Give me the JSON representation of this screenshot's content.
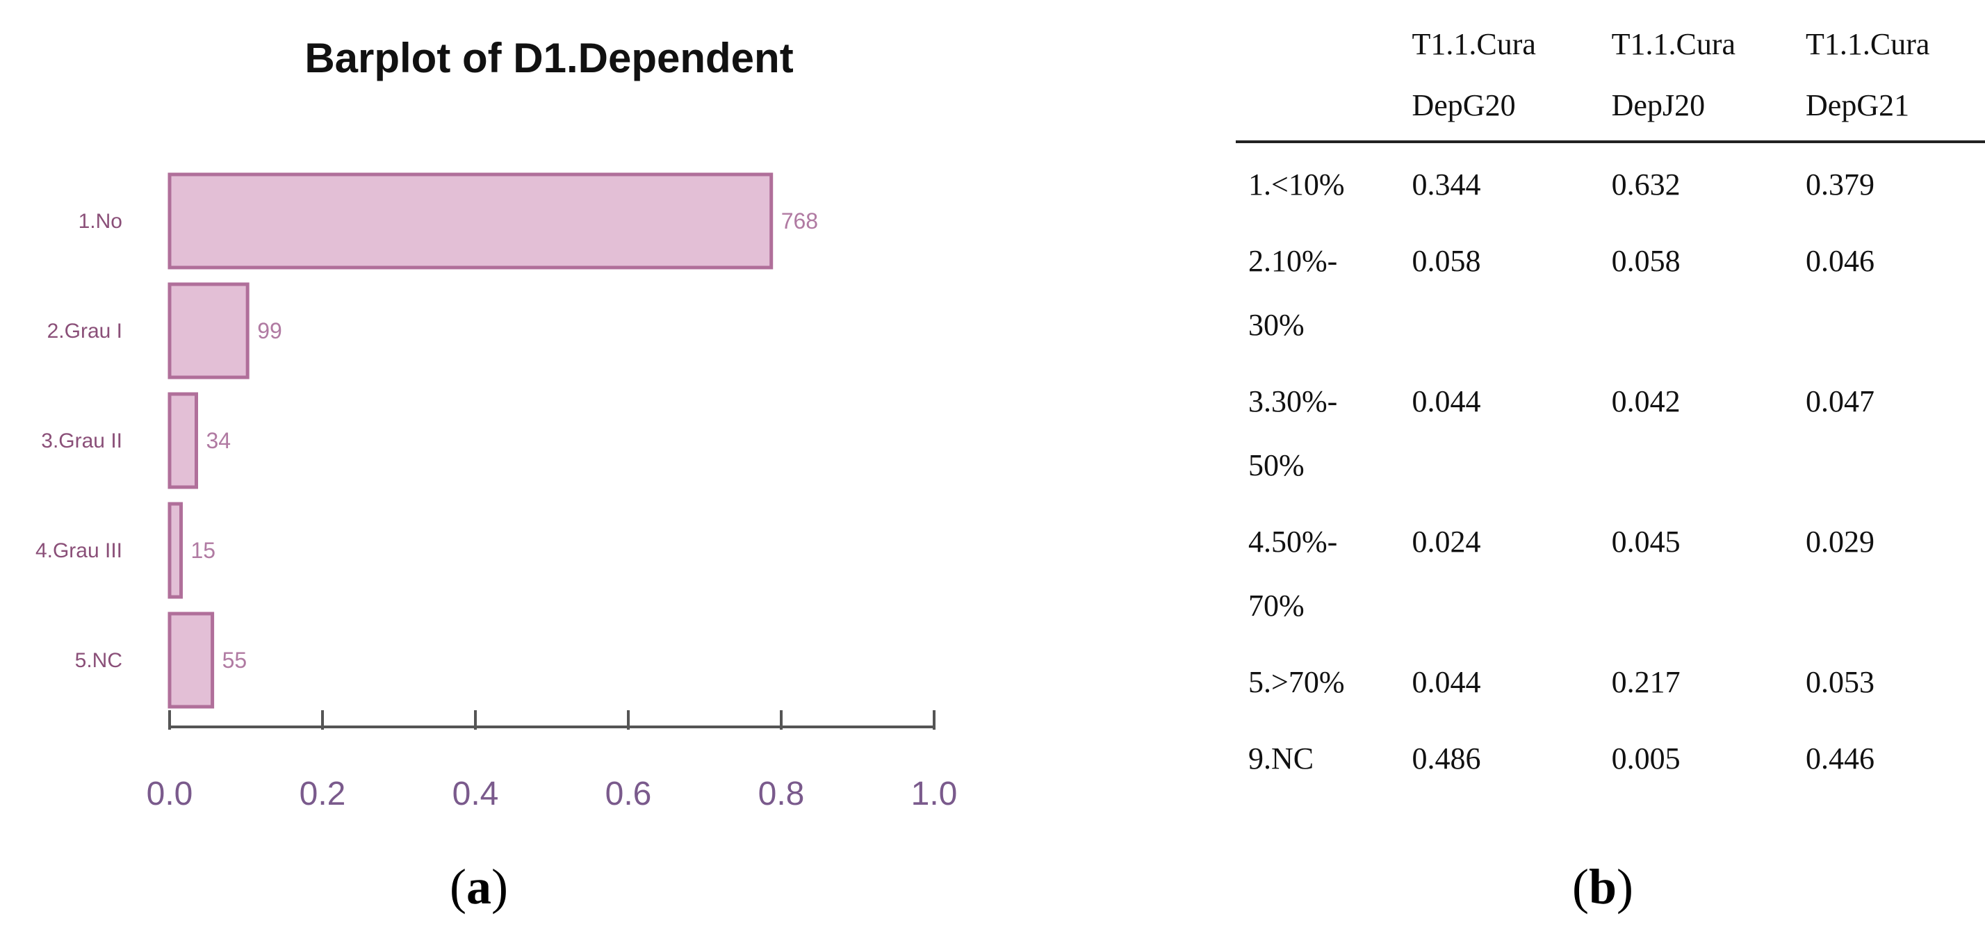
{
  "chart_data": [
    {
      "type": "bar",
      "orientation": "horizontal",
      "title": "Barplot of D1.Dependent",
      "categories": [
        "1.No",
        "2.Grau I",
        "3.Grau II",
        "4.Grau III",
        "5.NC"
      ],
      "values": [
        0.787,
        0.102,
        0.035,
        0.015,
        0.056
      ],
      "data_labels": [
        "768",
        "99",
        "34",
        "15",
        "55"
      ],
      "xlim": [
        0.0,
        1.0
      ],
      "x_ticks": [
        "0.0",
        "0.2",
        "0.4",
        "0.6",
        "0.8",
        "1.0"
      ],
      "xlabel": "",
      "ylabel": "",
      "grid": false,
      "colors": {
        "bar_fill": "#e3bfd6",
        "bar_edge": "#b06f9a"
      }
    },
    {
      "type": "table",
      "columns": [
        [
          "T1.1.Cura",
          "DepG20"
        ],
        [
          "T1.1.Cura",
          "DepJ20"
        ],
        [
          "T1.1.Cura",
          "DepG21"
        ]
      ],
      "rows": [
        {
          "label": [
            "1.<10%"
          ],
          "values": [
            "0.344",
            "0.632",
            "0.379"
          ]
        },
        {
          "label": [
            "2.10%-",
            "30%"
          ],
          "values": [
            "0.058",
            "0.058",
            "0.046"
          ]
        },
        {
          "label": [
            "3.30%-",
            "50%"
          ],
          "values": [
            "0.044",
            "0.042",
            "0.047"
          ]
        },
        {
          "label": [
            "4.50%-",
            "70%"
          ],
          "values": [
            "0.024",
            "0.045",
            "0.029"
          ]
        },
        {
          "label": [
            "5.>70%"
          ],
          "values": [
            "0.044",
            "0.217",
            "0.053"
          ]
        },
        {
          "label": [
            "9.NC"
          ],
          "values": [
            "0.486",
            "0.005",
            "0.446"
          ]
        }
      ]
    }
  ],
  "panels": {
    "a_letter": "a",
    "b_letter": "b"
  }
}
